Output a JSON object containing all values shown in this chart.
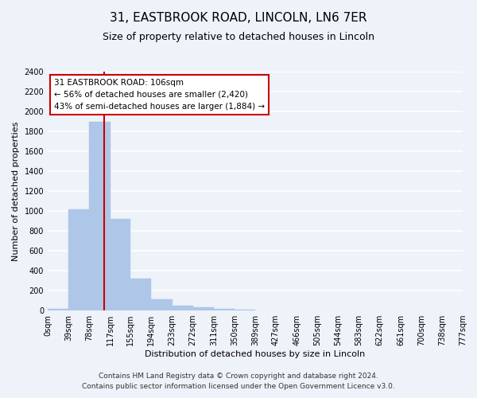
{
  "title": "31, EASTBROOK ROAD, LINCOLN, LN6 7ER",
  "subtitle": "Size of property relative to detached houses in Lincoln",
  "xlabel": "Distribution of detached houses by size in Lincoln",
  "ylabel": "Number of detached properties",
  "bar_edges": [
    0,
    39,
    78,
    117,
    155,
    194,
    233,
    272,
    311,
    350,
    389,
    427,
    466,
    505,
    544,
    583,
    622,
    661,
    700,
    738,
    777
  ],
  "bar_heights": [
    20,
    1020,
    1900,
    920,
    320,
    110,
    50,
    35,
    20,
    5,
    0,
    0,
    0,
    0,
    0,
    0,
    0,
    0,
    0,
    0
  ],
  "tick_labels": [
    "0sqm",
    "39sqm",
    "78sqm",
    "117sqm",
    "155sqm",
    "194sqm",
    "233sqm",
    "272sqm",
    "311sqm",
    "350sqm",
    "389sqm",
    "427sqm",
    "466sqm",
    "505sqm",
    "544sqm",
    "583sqm",
    "622sqm",
    "661sqm",
    "700sqm",
    "738sqm",
    "777sqm"
  ],
  "bar_color": "#aec6e8",
  "bar_edge_color": "#aec6e8",
  "property_line_x": 106,
  "property_line_color": "#cc0000",
  "annotation_title": "31 EASTBROOK ROAD: 106sqm",
  "annotation_line1": "← 56% of detached houses are smaller (2,420)",
  "annotation_line2": "43% of semi-detached houses are larger (1,884) →",
  "annotation_box_color": "#ffffff",
  "annotation_box_edge": "#cc0000",
  "ylim": [
    0,
    2400
  ],
  "yticks": [
    0,
    200,
    400,
    600,
    800,
    1000,
    1200,
    1400,
    1600,
    1800,
    2000,
    2200,
    2400
  ],
  "footer_line1": "Contains HM Land Registry data © Crown copyright and database right 2024.",
  "footer_line2": "Contains public sector information licensed under the Open Government Licence v3.0.",
  "bg_color": "#eef2f9",
  "plot_bg_color": "#eef2f9",
  "grid_color": "#ffffff",
  "title_fontsize": 11,
  "subtitle_fontsize": 9,
  "axis_label_fontsize": 8,
  "tick_fontsize": 7,
  "footer_fontsize": 6.5,
  "annotation_fontsize": 7.5
}
